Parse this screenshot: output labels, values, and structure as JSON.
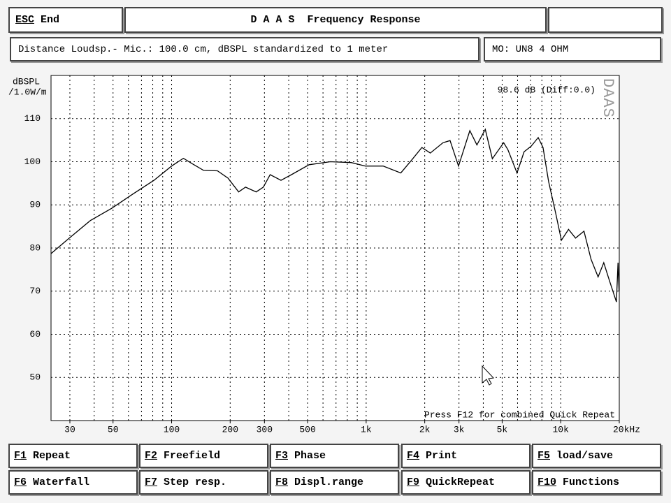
{
  "header": {
    "esc_key": "ESC",
    "esc_label": "End",
    "title": "D A A S  Frequency Response"
  },
  "info": {
    "text": "Distance Loudsp.- Mic.: 100.0 cm, dBSPL standardized to 1 meter",
    "model": "MO: UN8 4 OHM"
  },
  "chart_data": {
    "type": "line",
    "xscale": "log",
    "grid": true,
    "color": "#000000",
    "ylabel": [
      "dBSPL",
      "/1.0W/m"
    ],
    "annotation": "98.6 dB (Diff:0.0)",
    "logo": "DAAS",
    "footer_note": "Press F12 for combined Quick Repeat",
    "xlim": [
      24,
      20000
    ],
    "ylim": [
      40,
      120
    ],
    "yticks": [
      50,
      60,
      70,
      80,
      90,
      100,
      110
    ],
    "xticks": [
      30,
      50,
      100,
      200,
      300,
      500,
      {
        "value": 1000,
        "label": "1k"
      },
      {
        "value": 2000,
        "label": "2k"
      },
      {
        "value": 3000,
        "label": "3k"
      },
      {
        "value": 5000,
        "label": "5k"
      },
      {
        "value": 10000,
        "label": "10k"
      },
      {
        "value": 20000,
        "label": "20kHz"
      }
    ],
    "xgrid": [
      30,
      40,
      50,
      60,
      70,
      80,
      90,
      100,
      200,
      300,
      400,
      500,
      600,
      700,
      800,
      900,
      1000,
      2000,
      3000,
      4000,
      5000,
      6000,
      7000,
      8000,
      9000,
      10000,
      20000
    ],
    "x": [
      24,
      29.8,
      38.3,
      49.2,
      63.2,
      81.2,
      100,
      115,
      128,
      146,
      172,
      195,
      221,
      240,
      272,
      296,
      321,
      365,
      413,
      509,
      654,
      839,
      991,
      1222,
      1506,
      1708,
      1934,
      2136,
      2483,
      2700,
      2983,
      3411,
      3710,
      4097,
      4453,
      5092,
      5348,
      5962,
      6481,
      7046,
      7660,
      8114,
      8668,
      9432,
      10080,
      10970,
      11920,
      13170,
      14320,
      15570,
      16640,
      17790,
      19330,
      19700,
      19950
    ],
    "values": [
      78.7,
      82.3,
      86.4,
      89.2,
      92.5,
      95.7,
      99,
      100.8,
      99.5,
      98,
      97.9,
      96.2,
      93,
      94.1,
      93,
      94.1,
      97,
      95.7,
      97,
      99.3,
      100,
      99.8,
      99,
      99,
      97.4,
      100.3,
      103.3,
      102,
      104.4,
      104.9,
      99,
      107.2,
      103.9,
      107.5,
      100.7,
      104.4,
      102.8,
      97.4,
      102.3,
      103.6,
      105.6,
      103.3,
      95.4,
      88,
      81.8,
      84.3,
      82.3,
      83.9,
      77.4,
      73.3,
      76.6,
      72.5,
      67.5,
      76.6,
      70
    ]
  },
  "function_keys": [
    {
      "key": "F1",
      "label": "Repeat"
    },
    {
      "key": "F2",
      "label": "Freefield"
    },
    {
      "key": "F3",
      "label": "Phase"
    },
    {
      "key": "F4",
      "label": "Print"
    },
    {
      "key": "F5",
      "label": "load/save"
    },
    {
      "key": "F6",
      "label": "Waterfall"
    },
    {
      "key": "F7",
      "label": "Step resp."
    },
    {
      "key": "F8",
      "label": "Displ.range"
    },
    {
      "key": "F9",
      "label": "QuickRepeat"
    },
    {
      "key": "F10",
      "label": "Functions"
    }
  ]
}
